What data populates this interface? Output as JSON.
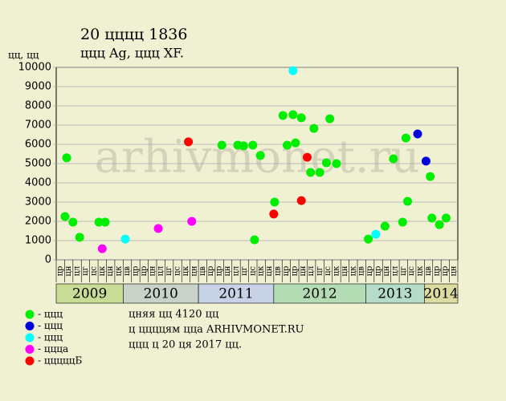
{
  "chart_data": {
    "type": "scatter",
    "title": "20 цццц 1836",
    "subtitle": "ццц Ag, ццц XF.",
    "y_label": "цц, цц",
    "watermark": "arhivmonet.ru",
    "ylim": [
      0,
      10000
    ],
    "yticks": [
      0,
      1000,
      2000,
      3000,
      4000,
      5000,
      6000,
      7000,
      8000,
      9000,
      10000
    ],
    "xlim": [
      0,
      48
    ],
    "grid": true,
    "years": [
      {
        "name": "2009",
        "color": "#c8dc96",
        "months": [
          "цр",
          "цн",
          "цл",
          "цг",
          "цс",
          "цк",
          "цн",
          "цк"
        ]
      },
      {
        "name": "2010",
        "color": "#c8d2c8",
        "months": [
          "цв",
          "цр",
          "цр",
          "цн",
          "цл",
          "цг",
          "цс",
          "цк",
          "цн"
        ]
      },
      {
        "name": "2011",
        "color": "#c8d2e6",
        "months": [
          "цв",
          "цр",
          "цр",
          "цн",
          "цл",
          "цг",
          "цс",
          "цк",
          "цн"
        ]
      },
      {
        "name": "2012",
        "color": "#b4dcb4",
        "months": [
          "цв",
          "цр",
          "цр",
          "цн",
          "цл",
          "цг",
          "цс",
          "цк",
          "цн",
          "цк",
          "цв"
        ]
      },
      {
        "name": "2013",
        "color": "#b4dcc8",
        "months": [
          "цр",
          "цр",
          "цн",
          "цл",
          "цг",
          "цс",
          "цк"
        ]
      },
      {
        "name": "2014",
        "color": "#dcdca0",
        "months": [
          "цв",
          "цр",
          "цр",
          "цн"
        ]
      }
    ],
    "series": [
      {
        "name": "- ццц",
        "color": "#00ee00",
        "x": [
          1.25,
          1.05,
          2.0,
          2.8,
          5.1,
          5.85,
          19.8,
          21.7,
          22.4,
          23.5,
          23.7,
          24.4,
          26.1,
          27.1,
          27.6,
          28.3,
          28.6,
          29.3,
          30.4,
          30.8,
          31.5,
          32.3,
          32.7,
          33.5,
          37.3,
          39.3,
          40.3,
          41.4,
          41.8,
          42.0,
          44.7,
          44.9,
          45.8,
          46.6
        ],
        "values": [
          5300,
          2250,
          1960,
          1170,
          1960,
          1960,
          5960,
          5960,
          5920,
          5960,
          1040,
          5420,
          3000,
          7500,
          5960,
          7540,
          6080,
          7380,
          4540,
          6830,
          4540,
          5040,
          7330,
          5000,
          1080,
          1750,
          5250,
          1960,
          6330,
          3040,
          4330,
          2170,
          1830,
          2170
        ]
      },
      {
        "name": "- ццц",
        "color": "#0000dd",
        "x": [
          43.2,
          44.2
        ],
        "values": [
          6540,
          5130
        ]
      },
      {
        "name": "- ццц",
        "color": "#00ffff",
        "x": [
          8.25,
          28.3,
          38.2
        ],
        "values": [
          1080,
          9830,
          1330
        ]
      },
      {
        "name": "- ццца",
        "color": "#ff00ff",
        "x": [
          5.5,
          12.2,
          16.2
        ],
        "values": [
          580,
          1630,
          2000
        ]
      },
      {
        "name": "- цццццБ",
        "color": "#ff0000",
        "x": [
          15.8,
          26.0,
          29.3,
          30.0
        ],
        "values": [
          6130,
          2380,
          3080,
          5330
        ]
      }
    ],
    "notes": [
      "цняя цц 4120 цц",
      "ц ццццям цца ARHIVMONET.RU",
      "ццц ц 20 ця 2017 цц."
    ]
  }
}
